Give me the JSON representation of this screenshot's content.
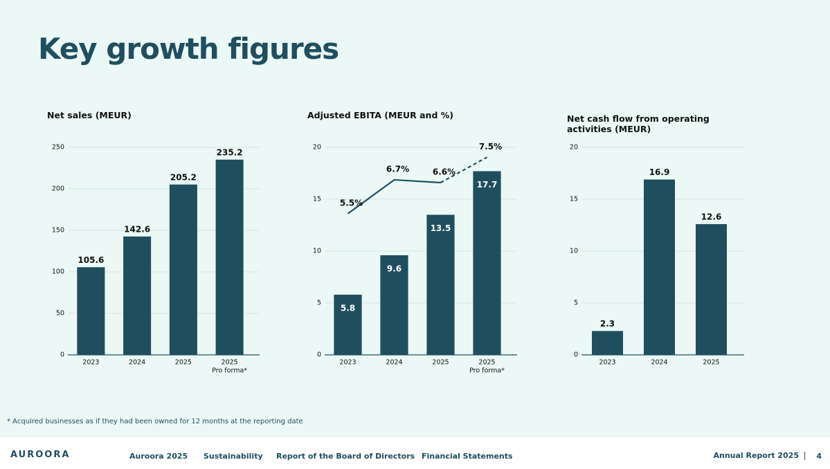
{
  "title": "Key growth figures",
  "footnote": "* Acquired businesses as if they had been owned for 12 months at the reporting date",
  "footer": {
    "logo": "AUROORA",
    "nav": [
      "Auroora 2025",
      "Sustainability",
      "Report of the Board of Directors",
      "Financial Statements"
    ],
    "report": "Annual Report 2025",
    "page": "4"
  },
  "chart_data": [
    {
      "type": "bar",
      "title": "Net sales (MEUR)",
      "categories": [
        "2023",
        "2024",
        "2025",
        "2025"
      ],
      "category_notes": [
        null,
        null,
        null,
        "Pro forma*"
      ],
      "values": [
        105.6,
        142.6,
        205.2,
        235.2
      ],
      "color": "#1f4e5f",
      "label_position": "above",
      "ylim": [
        0,
        250
      ],
      "yticks": [
        0,
        50,
        100,
        150,
        200,
        250
      ],
      "grid": true
    },
    {
      "type": "bar",
      "title": "Adjusted EBITA (MEUR and %)",
      "categories": [
        "2023",
        "2024",
        "2025",
        "2025"
      ],
      "category_notes": [
        null,
        null,
        null,
        "Pro forma*"
      ],
      "values": [
        5.8,
        9.6,
        13.5,
        17.7
      ],
      "color": "#1f4e5f",
      "label_position": "inside",
      "ylim": [
        0,
        20
      ],
      "yticks": [
        0,
        5,
        10,
        15,
        20
      ],
      "y2lim": [
        0.5,
        7.85
      ],
      "grid": true,
      "series": [
        {
          "name": "Adjusted EBITA %",
          "type": "line",
          "axis": "y2",
          "color": "#1f4e5f",
          "values": [
            5.5,
            6.7,
            6.6,
            7.5
          ],
          "value_labels": [
            "5.5%",
            "6.7%",
            "6.6%",
            "7.5%"
          ],
          "dashed_from": 2
        }
      ]
    },
    {
      "type": "bar",
      "title": "Net cash flow from operating activities (MEUR)",
      "categories": [
        "2023",
        "2024",
        "2025"
      ],
      "values": [
        2.3,
        16.9,
        12.6
      ],
      "color": "#1f4e5f",
      "label_position": "above",
      "ylim": [
        0,
        20
      ],
      "yticks": [
        0,
        5,
        10,
        15,
        20
      ],
      "grid": true
    }
  ]
}
